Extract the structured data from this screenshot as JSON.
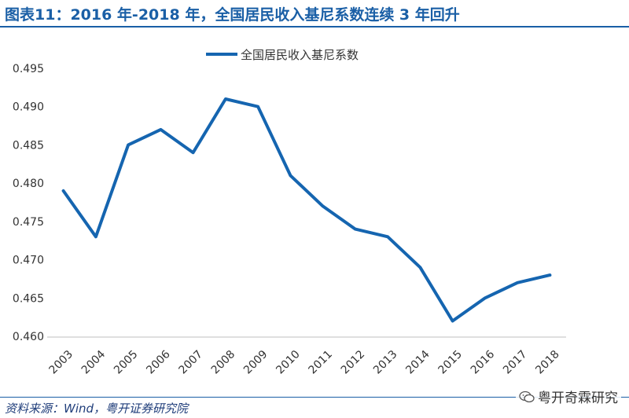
{
  "title": "图表11：2016 年-2018 年，全国居民收入基尼系数连续 3 年回升",
  "source": "资料来源：Wind，粤开证券研究院",
  "watermark": "粤开奇霖研究",
  "colors": {
    "title": "#1a5fa6",
    "series": "#1565b0"
  },
  "icons": {
    "brand": "wechat-icon"
  },
  "chart_data": {
    "type": "line",
    "title": "",
    "xlabel": "",
    "ylabel": "",
    "x": [
      "2003",
      "2004",
      "2005",
      "2006",
      "2007",
      "2008",
      "2009",
      "2010",
      "2011",
      "2012",
      "2013",
      "2014",
      "2015",
      "2016",
      "2017",
      "2018"
    ],
    "series": [
      {
        "name": "全国居民收入基尼系数",
        "values": [
          0.479,
          0.473,
          0.485,
          0.487,
          0.484,
          0.491,
          0.49,
          0.481,
          0.477,
          0.474,
          0.473,
          0.469,
          0.462,
          0.465,
          0.467,
          0.468
        ]
      }
    ],
    "ylim": [
      0.46,
      0.495
    ],
    "yticks": [
      "0.460",
      "0.465",
      "0.470",
      "0.475",
      "0.480",
      "0.485",
      "0.490",
      "0.495"
    ],
    "grid": false,
    "legend": "top-center"
  }
}
